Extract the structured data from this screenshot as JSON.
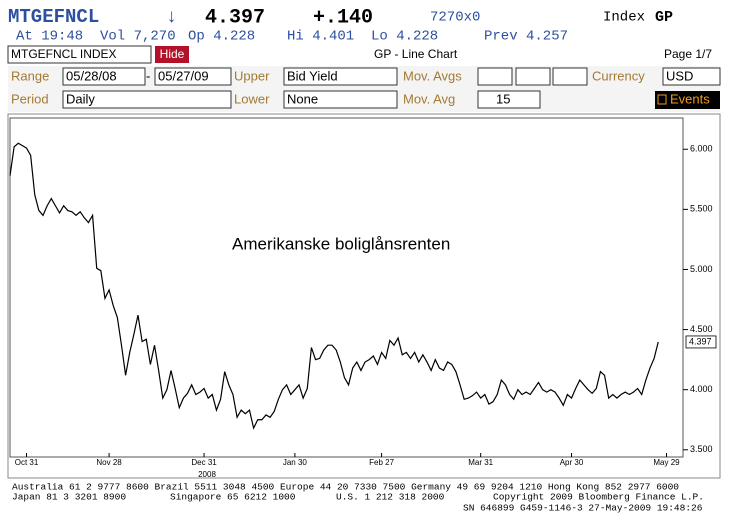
{
  "header": {
    "ticker": "MTGEFNCL",
    "arrow": "↓",
    "last": "4.397",
    "change": "+.140",
    "size": "7270x0",
    "security_type": "Index",
    "function": "GP",
    "quote": [
      "At 19:48",
      "Vol 7,270",
      "Op 4.228",
      "Hi 4.401",
      "Lo 4.228",
      "Prev 4.257"
    ]
  },
  "toolbar": {
    "security": "MTGEFNCL INDEX",
    "hide": "Hide",
    "title": "GP - Line Chart",
    "page": "Page 1/7"
  },
  "form": {
    "range_label": "Range",
    "start": "05/28/08",
    "dash": "-",
    "end": "05/27/09",
    "upper_label": "Upper",
    "upper": "Bid Yield",
    "mov_avgs_label": "Mov. Avgs",
    "currency_label": "Currency",
    "currency": "USD",
    "period_label": "Period",
    "period": "Daily",
    "lower_label": "Lower",
    "lower": "None",
    "mov_avg_label": "Mov. Avg",
    "mov_avg": "15",
    "events": "Events"
  },
  "chart_data": {
    "type": "line",
    "annotation": "Amerikanske boliglånsrenten",
    "series": [
      {
        "name": "MTGEFNCL INDEX",
        "color": "#000000",
        "values": [
          5.78,
          6.02,
          6.05,
          6.03,
          6.01,
          5.95,
          5.62,
          5.49,
          5.45,
          5.53,
          5.59,
          5.53,
          5.47,
          5.53,
          5.49,
          5.48,
          5.45,
          5.48,
          5.43,
          5.39,
          5.45,
          5.01,
          4.99,
          4.76,
          4.83,
          4.7,
          4.6,
          4.37,
          4.12,
          4.31,
          4.46,
          4.62,
          4.4,
          4.42,
          4.21,
          4.37,
          4.16,
          3.93,
          4.0,
          4.16,
          4.01,
          3.85,
          3.93,
          3.97,
          4.04,
          3.96,
          3.98,
          4.01,
          3.93,
          3.96,
          3.83,
          3.92,
          4.15,
          4.04,
          3.96,
          3.77,
          3.83,
          3.8,
          3.83,
          3.68,
          3.75,
          3.75,
          3.79,
          3.77,
          3.82,
          3.92,
          4.0,
          4.04,
          3.96,
          4.0,
          4.04,
          3.93,
          4.01,
          4.35,
          4.25,
          4.26,
          4.33,
          4.37,
          4.37,
          4.33,
          4.23,
          4.1,
          4.04,
          4.18,
          4.23,
          4.16,
          4.23,
          4.25,
          4.28,
          4.21,
          4.31,
          4.26,
          4.41,
          4.37,
          4.43,
          4.29,
          4.31,
          4.26,
          4.31,
          4.23,
          4.29,
          4.23,
          4.16,
          4.25,
          4.18,
          4.16,
          4.23,
          4.21,
          4.15,
          4.04,
          3.92,
          3.93,
          3.95,
          3.98,
          3.93,
          3.96,
          3.88,
          3.9,
          3.96,
          4.08,
          4.04,
          3.96,
          3.92,
          4.0,
          3.96,
          3.98,
          3.96,
          4.01,
          4.06,
          4.0,
          3.98,
          4.0,
          3.98,
          3.93,
          3.87,
          3.96,
          3.93,
          4.01,
          4.08,
          4.04,
          4.0,
          3.97,
          4.01,
          4.15,
          4.12,
          3.93,
          3.96,
          3.93,
          3.96,
          3.98,
          3.96,
          3.98,
          4.01,
          3.96,
          4.08,
          4.18,
          4.26,
          4.397
        ]
      }
    ],
    "xlim": [
      0,
      163
    ],
    "xticks": [
      {
        "value": 4,
        "label": "Oct 31"
      },
      {
        "value": 24,
        "label": "Nov 28"
      },
      {
        "value": 47,
        "label": "Dec 31"
      },
      {
        "value": 69,
        "label": "Jan 30"
      },
      {
        "value": 90,
        "label": "Feb 27"
      },
      {
        "value": 114,
        "label": "Mar 31"
      },
      {
        "value": 136,
        "label": "Apr 30"
      },
      {
        "value": 159,
        "label": "May 29"
      }
    ],
    "year_label": "2008",
    "ylim": [
      3.44,
      6.26
    ],
    "yticks": [
      {
        "value": 3.5,
        "label": "3.500"
      },
      {
        "value": 4,
        "label": "4.000"
      },
      {
        "value": 4.5,
        "label": "4.500"
      },
      {
        "value": 5,
        "label": "5.000"
      },
      {
        "value": 5.5,
        "label": "5.500"
      },
      {
        "value": 6,
        "label": "6.000"
      }
    ],
    "grid": false
  },
  "footer": [
    "Australia 61 2 9777 8600 Brazil 5511 3048 4500 Europe 44 20 7330 7500 Germany 49 69 9204 1210 Hong Kong 852 2977 6000",
    "Japan 81 3 3201 8900",
    "Singapore 65 6212 1000",
    "U.S. 1 212 318 2000",
    "Copyright 2009 Bloomberg Finance L.P.",
    "SN 646899 G459-1146-3 27-May-2009 19:48:26"
  ]
}
